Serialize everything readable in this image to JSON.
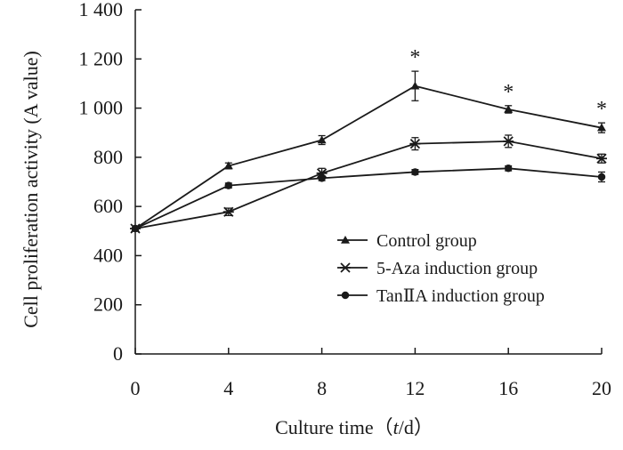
{
  "chart_data": {
    "type": "line",
    "title": "",
    "xlabel_prefix": "Culture time（",
    "xlabel_var": "t",
    "xlabel_suffix": "/d）",
    "ylabel": "Cell proliferation activity (A value)",
    "x": [
      0,
      4,
      8,
      12,
      16,
      20
    ],
    "x_tick_labels": [
      "0",
      "4",
      "8",
      "12",
      "16",
      "20"
    ],
    "y_ticks": [
      0,
      200,
      400,
      600,
      800,
      1000,
      1200,
      1400
    ],
    "y_tick_labels": [
      "0",
      "200",
      "400",
      "600",
      "800",
      "1 000",
      "1 200",
      "1 400"
    ],
    "xlim": [
      0,
      20
    ],
    "ylim": [
      0,
      1400
    ],
    "legend_position": "center-right",
    "series": [
      {
        "name": "Control group",
        "marker": "triangle",
        "values": [
          510,
          765,
          870,
          1090,
          995,
          920
        ],
        "errors": [
          0,
          12,
          18,
          60,
          15,
          20
        ]
      },
      {
        "name": "5-Aza induction group",
        "marker": "star",
        "values": [
          510,
          578,
          735,
          855,
          865,
          795
        ],
        "errors": [
          0,
          15,
          20,
          25,
          25,
          18
        ]
      },
      {
        "name": "TanⅡA induction group",
        "marker": "circle",
        "values": [
          510,
          685,
          715,
          740,
          755,
          720
        ],
        "errors": [
          0,
          10,
          10,
          10,
          10,
          20
        ]
      }
    ],
    "annotations": [
      {
        "x": 12,
        "text": "*"
      },
      {
        "x": 16,
        "text": "*"
      },
      {
        "x": 20,
        "text": "*"
      }
    ],
    "colors": {
      "line": "#1a1a1a",
      "background": "#ffffff"
    }
  }
}
